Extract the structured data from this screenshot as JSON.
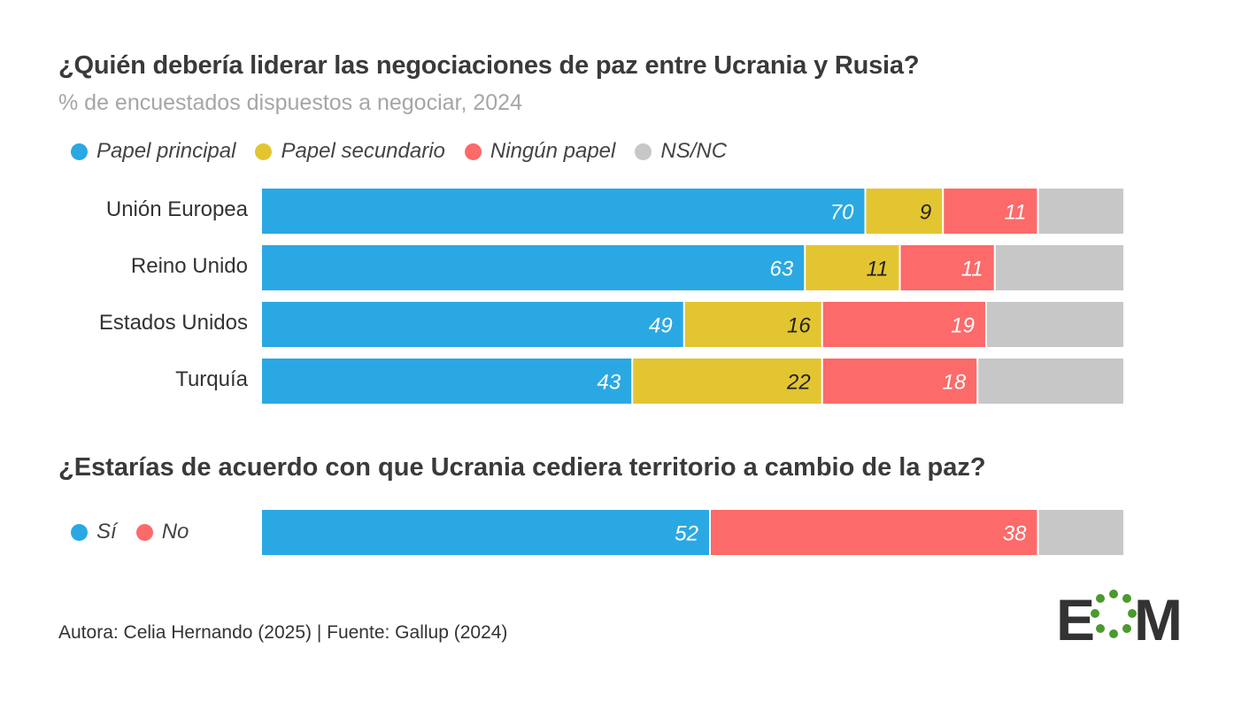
{
  "title": "¿Quién debería liderar las negociaciones de paz entre Ucrania y Rusia?",
  "subtitle": "% de encuestados dispuestos a negociar, 2024",
  "colors": {
    "principal": "#2aa8e3",
    "secundario": "#e3c532",
    "ninguno": "#fc6a6a",
    "nsnc": "#c7c7c7"
  },
  "legend1": [
    {
      "label": "Papel principal",
      "color": "#2aa8e3"
    },
    {
      "label": "Papel secundario",
      "color": "#e3c532"
    },
    {
      "label": "Ningún papel",
      "color": "#fc6a6a"
    },
    {
      "label": "NS/NC",
      "color": "#c7c7c7"
    }
  ],
  "question2": "¿Estarías de acuerdo con que Ucrania cediera territorio a cambio de la paz?",
  "legend2": [
    {
      "label": "Sí",
      "color": "#2aa8e3"
    },
    {
      "label": "No",
      "color": "#fc6a6a"
    }
  ],
  "footer": "Autora: Celia Hernando (2025) | Fuente: Gallup (2024)",
  "logo": {
    "text": "EOM"
  },
  "chart_data": [
    {
      "type": "bar",
      "orientation": "horizontal",
      "stacked": true,
      "categories": [
        "Unión Europea",
        "Reino Unido",
        "Estados Unidos",
        "Turquía"
      ],
      "series": [
        {
          "name": "Papel principal",
          "values": [
            70,
            63,
            49,
            43
          ]
        },
        {
          "name": "Papel secundario",
          "values": [
            9,
            11,
            16,
            22
          ]
        },
        {
          "name": "Ningún papel",
          "values": [
            11,
            11,
            19,
            18
          ]
        },
        {
          "name": "NS/NC",
          "values": [
            10,
            15,
            16,
            17
          ]
        }
      ],
      "labeled_series": [
        "Papel principal",
        "Papel secundario",
        "Ningún papel"
      ],
      "xlim": [
        0,
        100
      ]
    },
    {
      "type": "bar",
      "orientation": "horizontal",
      "stacked": true,
      "categories": [
        ""
      ],
      "series": [
        {
          "name": "Sí",
          "values": [
            52
          ]
        },
        {
          "name": "No",
          "values": [
            38
          ]
        },
        {
          "name": "NS/NC",
          "values": [
            10
          ]
        }
      ],
      "labeled_series": [
        "Sí",
        "No"
      ],
      "xlim": [
        0,
        100
      ]
    }
  ]
}
